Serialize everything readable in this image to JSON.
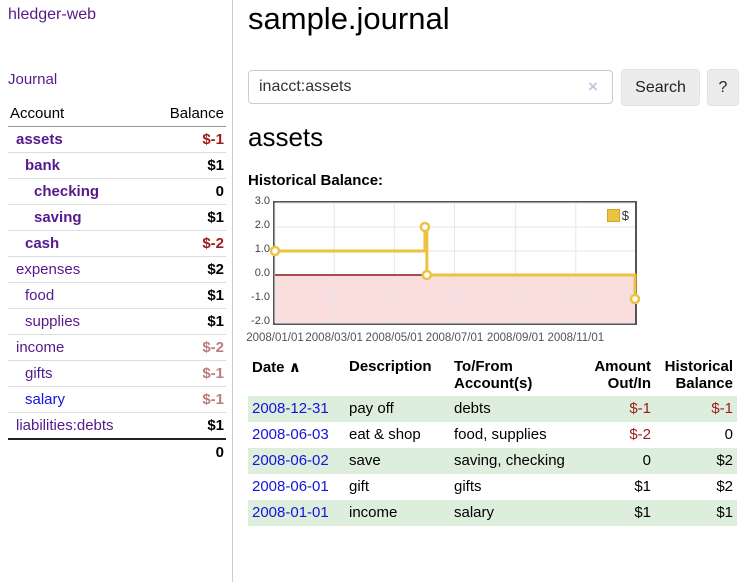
{
  "app": {
    "title": "hledger-web",
    "nav_journal": "Journal"
  },
  "colors": {
    "link_purple": "#551a8b",
    "link_blue": "#1414dd",
    "negative_deep": "#a01c1c",
    "negative_faded": "#bd7d7d",
    "row_green": "#ddeedd",
    "series_gold": "#edc240"
  },
  "sidebar": {
    "headers": {
      "account": "Account",
      "balance": "Balance"
    },
    "accounts": [
      {
        "name": "assets",
        "level": 0,
        "emph": true,
        "balance": "$-1",
        "balance_color": "#a01c1c"
      },
      {
        "name": "bank",
        "level": 1,
        "emph": true,
        "balance": "$1"
      },
      {
        "name": "checking",
        "level": 2,
        "emph": true,
        "balance": "0"
      },
      {
        "name": "saving",
        "level": 2,
        "emph": true,
        "balance": "$1"
      },
      {
        "name": "cash",
        "level": 1,
        "emph": true,
        "balance": "$-2",
        "balance_color": "#a01c1c"
      },
      {
        "name": "expenses",
        "level": 0,
        "emph": false,
        "balance": "$2"
      },
      {
        "name": "food",
        "level": 1,
        "emph": false,
        "balance": "$1"
      },
      {
        "name": "supplies",
        "level": 1,
        "emph": false,
        "balance": "$1"
      },
      {
        "name": "income",
        "level": 0,
        "emph": false,
        "balance": "$-2",
        "balance_color": "#bd7d7d"
      },
      {
        "name": "gifts",
        "level": 1,
        "emph": false,
        "balance": "$-1",
        "balance_color": "#bd7d7d"
      },
      {
        "name": "salary",
        "level": 1,
        "emph": false,
        "balance": "$-1",
        "name_color": "#1414dd",
        "balance_color": "#bd7d7d"
      },
      {
        "name": "liabilities:debts",
        "level": 0,
        "emph": false,
        "balance": "$1",
        "last": true
      }
    ],
    "total": "0"
  },
  "main": {
    "title": "sample.journal",
    "search": {
      "value": "inacct:assets",
      "clear_icon": "×",
      "button": "Search",
      "help_button": "?"
    },
    "account_heading": "assets",
    "chart_label": "Historical Balance:"
  },
  "chart_data": {
    "type": "line",
    "title": "Historical Balance:",
    "series": [
      {
        "name": "$",
        "color": "#edc240",
        "step": true,
        "points": [
          [
            "2008-01-01",
            1
          ],
          [
            "2008-06-01",
            2
          ],
          [
            "2008-06-03",
            0
          ],
          [
            "2008-12-31",
            -1
          ]
        ]
      }
    ],
    "x_range": [
      "2008-01-01",
      "2008-12-31"
    ],
    "ylim": [
      -2,
      3
    ],
    "yticks": [
      "3.0",
      "2.0",
      "1.0",
      "0.0",
      "-1.0",
      "-2.0"
    ],
    "xticks": [
      [
        "2008-01-01",
        "2008/01/01"
      ],
      [
        "2008-03-01",
        "2008/03/01"
      ],
      [
        "2008-05-01",
        "2008/05/01"
      ],
      [
        "2008-07-01",
        "2008/07/01"
      ],
      [
        "2008-09-01",
        "2008/09/01"
      ],
      [
        "2008-11-01",
        "2008/11/01"
      ]
    ],
    "legend": {
      "label": "$",
      "position": "top-right"
    },
    "grid": true,
    "grid_color": "#e6e6e6",
    "negative_region_fill": "#fadddd",
    "zero_line_color": "#8c1a1a",
    "border_color": "#545454"
  },
  "transactions": {
    "headers": {
      "date": "Date",
      "sort_icon": "∧",
      "description": "Description",
      "tofrom": "To/From Account(s)",
      "amount": "Amount Out/In",
      "balance": "Historical Balance"
    },
    "rows": [
      {
        "date": "2008-12-31",
        "description": "pay off",
        "accounts": "debts",
        "amount": "$-1",
        "amount_neg": true,
        "balance": "$-1",
        "balance_neg": true,
        "shaded": true
      },
      {
        "date": "2008-06-03",
        "description": "eat & shop",
        "accounts": "food, supplies",
        "amount": "$-2",
        "amount_neg": true,
        "balance": "0",
        "balance_neg": false,
        "shaded": false
      },
      {
        "date": "2008-06-02",
        "description": "save",
        "accounts": "saving, checking",
        "amount": "0",
        "amount_neg": false,
        "balance": "$2",
        "balance_neg": false,
        "shaded": true
      },
      {
        "date": "2008-06-01",
        "description": "gift",
        "accounts": "gifts",
        "amount": "$1",
        "amount_neg": false,
        "balance": "$2",
        "balance_neg": false,
        "shaded": false
      },
      {
        "date": "2008-01-01",
        "description": "income",
        "accounts": "salary",
        "amount": "$1",
        "amount_neg": false,
        "balance": "$1",
        "balance_neg": false,
        "shaded": true
      }
    ]
  }
}
